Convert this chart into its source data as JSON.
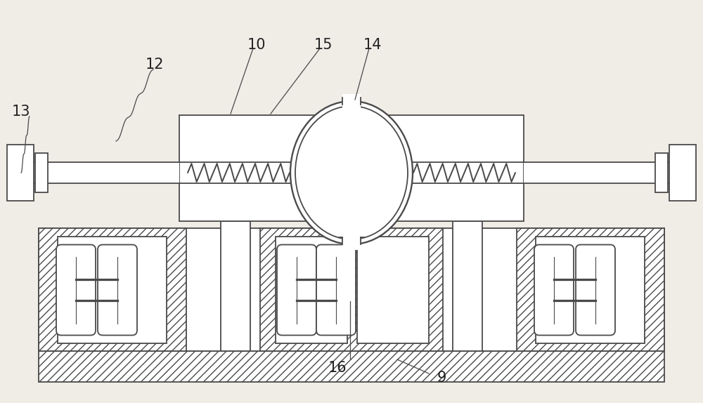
{
  "bg_color": "#f0ece6",
  "line_color": "#4a4a4a",
  "lw": 1.3,
  "figsize": [
    10.0,
    5.74
  ],
  "label_fontsize": 15,
  "label_color": "#222222"
}
